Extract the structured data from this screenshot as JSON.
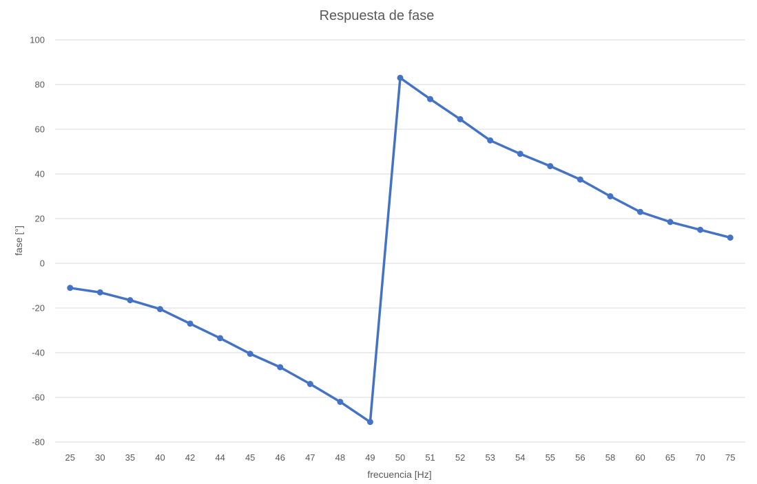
{
  "chart_data": {
    "type": "line",
    "title": "Respuesta de fase",
    "xlabel": "frecuencia [Hz]",
    "ylabel": "fase [°]",
    "ylim": [
      -80,
      100
    ],
    "yticks": [
      -80,
      -60,
      -40,
      -20,
      0,
      20,
      40,
      60,
      80,
      100
    ],
    "categories": [
      "25",
      "30",
      "35",
      "40",
      "42",
      "44",
      "45",
      "46",
      "47",
      "48",
      "49",
      "50",
      "51",
      "52",
      "53",
      "54",
      "55",
      "56",
      "58",
      "60",
      "65",
      "70",
      "75"
    ],
    "grid": true,
    "legend": "none",
    "series": [
      {
        "color": "#4472c4",
        "values": [
          -11,
          -13,
          -16.5,
          -20.5,
          -27,
          -33.5,
          -40.5,
          -46.5,
          -54,
          -62,
          -71,
          83,
          73.5,
          64.5,
          55,
          49,
          43.5,
          37.5,
          30,
          23,
          18.5,
          15,
          11.5
        ]
      }
    ]
  }
}
